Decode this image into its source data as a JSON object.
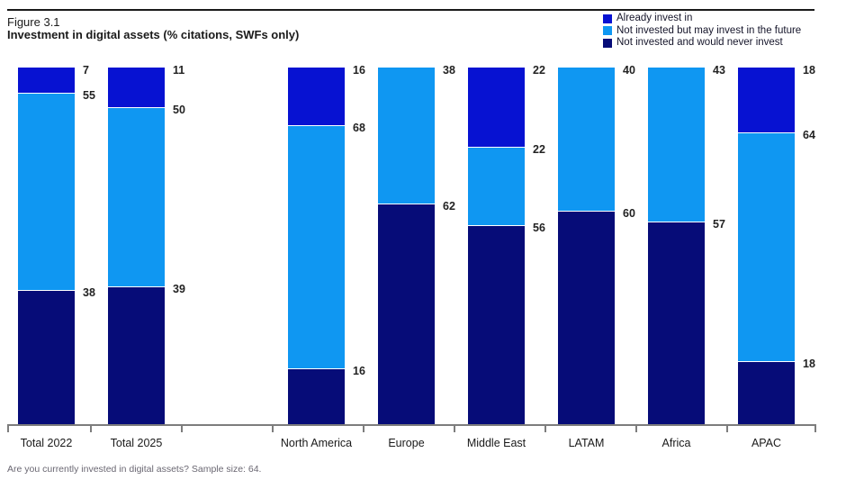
{
  "figure": {
    "label": "Figure 3.1",
    "title": "Investment in digital assets (% citations, SWFs only)",
    "footnote": "Are you currently invested in digital assets? Sample size: 64."
  },
  "legend": [
    {
      "label": "Already invest in",
      "color": "#0712d2"
    },
    {
      "label": "Not invested but may invest in the future",
      "color": "#0f97f2"
    },
    {
      "label": "Not invested and would never invest",
      "color": "#060c78"
    }
  ],
  "chart_data": {
    "type": "bar",
    "stacked": true,
    "title": "Investment in digital assets (% citations, SWFs only)",
    "xlabel": "",
    "ylabel": "% citations",
    "ylim": [
      0,
      100
    ],
    "grid": false,
    "legend_position": "top-right",
    "value_labels": "at top edge of each segment, right of bar",
    "categories": [
      "Total 2022",
      "Total 2025",
      "North America",
      "Europe",
      "Middle East",
      "LATAM",
      "Africa",
      "APAC"
    ],
    "series": [
      {
        "name": "Already invest in",
        "color": "#0712d2",
        "values": [
          7,
          11,
          16,
          0,
          22,
          0,
          0,
          18
        ]
      },
      {
        "name": "Not invested but may invest in the future",
        "color": "#0f97f2",
        "values": [
          55,
          50,
          68,
          38,
          22,
          40,
          43,
          64
        ]
      },
      {
        "name": "Not invested and would never invest",
        "color": "#060c78",
        "values": [
          38,
          39,
          16,
          62,
          56,
          60,
          57,
          18
        ]
      }
    ]
  },
  "colors": {
    "axis": "#7d7d7d",
    "top_rule": "#1a1a1a",
    "title_text": "#1a1a1a",
    "footnote_text": "#6a6772",
    "value_label_text": "#222222"
  }
}
